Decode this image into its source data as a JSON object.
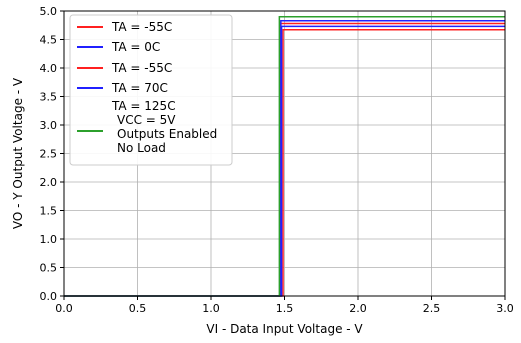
{
  "chart_data": {
    "type": "line",
    "xlabel": "VI - Data Input Voltage - V",
    "ylabel": "VO - Y Output Voltage - V",
    "xlim": [
      0.0,
      3.0
    ],
    "ylim": [
      0.0,
      5.0
    ],
    "x_ticks": [
      "0.0",
      "0.5",
      "1.0",
      "1.5",
      "2.0",
      "2.5",
      "3.0"
    ],
    "y_ticks": [
      "0.0",
      "0.5",
      "1.0",
      "1.5",
      "2.0",
      "2.5",
      "3.0",
      "3.5",
      "4.0",
      "4.5",
      "5.0"
    ],
    "grid": true,
    "legend_position": "upper-left",
    "legend": {
      "entries": [
        {
          "label": "TA = -55C",
          "color": "#ff2020",
          "has_line": true
        },
        {
          "label": "TA = 0C",
          "color": "#2020ff",
          "has_line": true
        },
        {
          "label": "TA = -55C",
          "color": "#ff2020",
          "has_line": true
        },
        {
          "label": "TA = 70C",
          "color": "#2020ff",
          "has_line": true
        },
        {
          "label": "TA = 125C",
          "color": "",
          "has_line": false
        },
        {
          "label": "VCC = 5V\nOutputs Enabled\nNo Load",
          "color": "#2ca02c",
          "has_line": true
        }
      ]
    },
    "series": [
      {
        "color": "#ff2020",
        "x": [
          0.0,
          1.49,
          1.49,
          3.0
        ],
        "y": [
          0.0,
          0.0,
          4.67,
          4.67
        ]
      },
      {
        "color": "#2020ff",
        "x": [
          0.0,
          1.48,
          1.48,
          3.0
        ],
        "y": [
          0.0,
          0.0,
          4.73,
          4.73
        ]
      },
      {
        "color": "#ff2020",
        "x": [
          0.0,
          1.47,
          1.47,
          3.0
        ],
        "y": [
          0.0,
          0.0,
          4.78,
          4.78
        ]
      },
      {
        "color": "#2020ff",
        "x": [
          0.0,
          1.475,
          1.475,
          3.0
        ],
        "y": [
          0.0,
          0.0,
          4.83,
          4.83
        ]
      },
      {
        "color": "#2ca02c",
        "x": [
          0.0,
          1.465,
          1.465,
          3.0
        ],
        "y": [
          0.0,
          0.0,
          4.9,
          4.9
        ]
      }
    ]
  }
}
